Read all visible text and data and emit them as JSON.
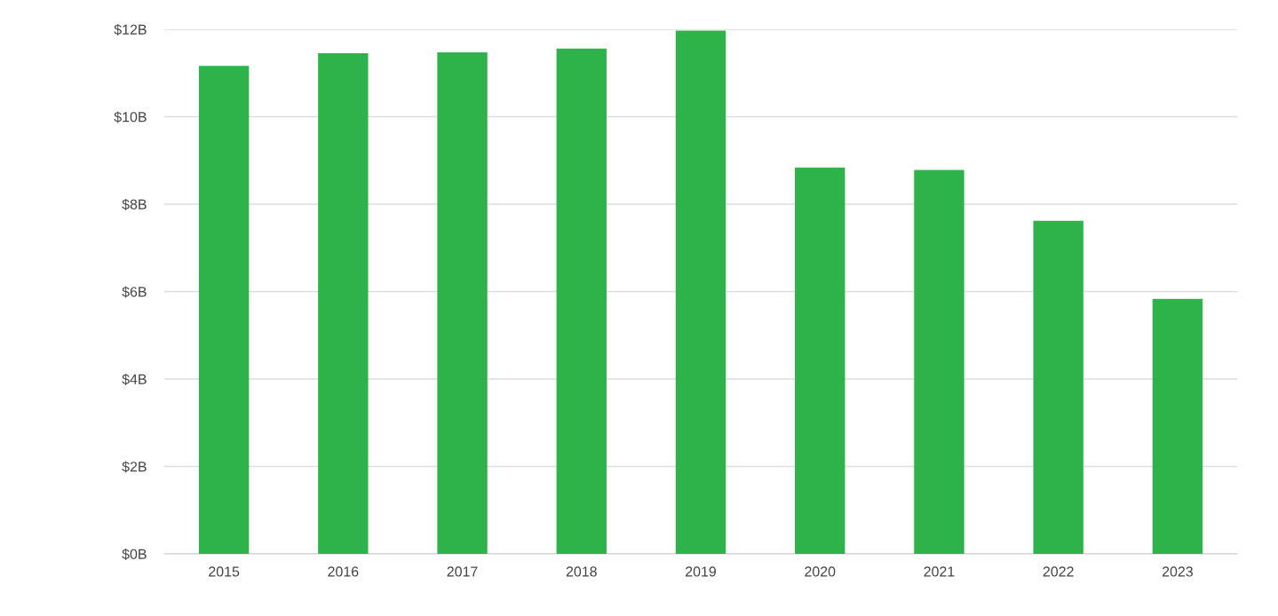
{
  "chart_data": {
    "type": "bar",
    "categories": [
      "2015",
      "2016",
      "2017",
      "2018",
      "2019",
      "2020",
      "2021",
      "2022",
      "2023"
    ],
    "values": [
      11.16,
      11.45,
      11.47,
      11.56,
      11.97,
      8.84,
      8.78,
      7.62,
      5.83
    ],
    "color": "#2eb34a",
    "ylim": [
      0,
      12
    ],
    "yticks": [
      {
        "value": 0,
        "label": "$0B"
      },
      {
        "value": 2,
        "label": "$2B"
      },
      {
        "value": 4,
        "label": "$4B"
      },
      {
        "value": 6,
        "label": "$6B"
      },
      {
        "value": 8,
        "label": "$8B"
      },
      {
        "value": 10,
        "label": "$10B"
      },
      {
        "value": 12,
        "label": "$12B"
      }
    ],
    "grid": "y",
    "legend": false
  }
}
